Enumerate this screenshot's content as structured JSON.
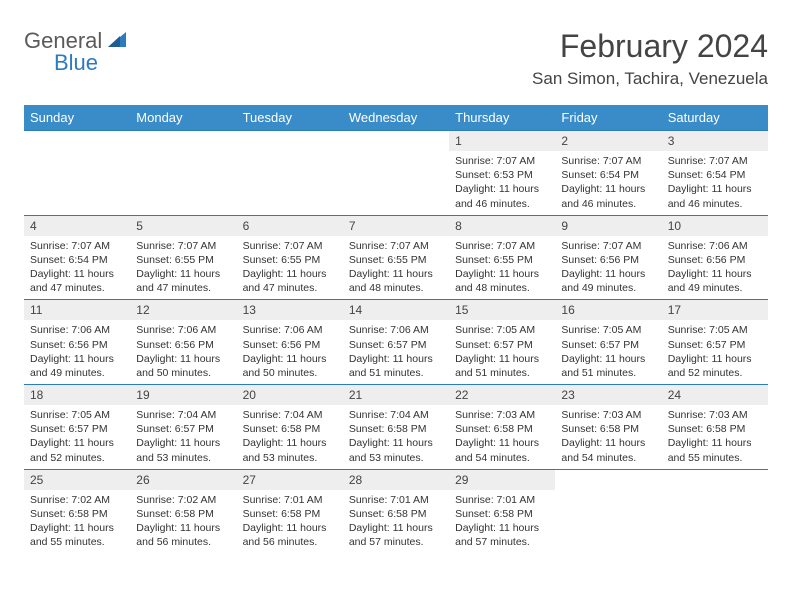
{
  "brand": {
    "word1": "General",
    "word2": "Blue"
  },
  "title": "February 2024",
  "location": "San Simon, Tachira, Venezuela",
  "colors": {
    "header_bg": "#3a8cc9",
    "header_text": "#ffffff",
    "cell_border": "#2b7bbf",
    "daynum_bg": "#eeeeee",
    "text": "#333333",
    "logo_gray": "#5a5a5a",
    "logo_blue": "#2b7bbf"
  },
  "day_headers": [
    "Sunday",
    "Monday",
    "Tuesday",
    "Wednesday",
    "Thursday",
    "Friday",
    "Saturday"
  ],
  "weeks": [
    [
      null,
      null,
      null,
      null,
      {
        "n": "1",
        "sunrise": "7:07 AM",
        "sunset": "6:53 PM",
        "daylight": "11 hours and 46 minutes."
      },
      {
        "n": "2",
        "sunrise": "7:07 AM",
        "sunset": "6:54 PM",
        "daylight": "11 hours and 46 minutes."
      },
      {
        "n": "3",
        "sunrise": "7:07 AM",
        "sunset": "6:54 PM",
        "daylight": "11 hours and 46 minutes."
      }
    ],
    [
      {
        "n": "4",
        "sunrise": "7:07 AM",
        "sunset": "6:54 PM",
        "daylight": "11 hours and 47 minutes."
      },
      {
        "n": "5",
        "sunrise": "7:07 AM",
        "sunset": "6:55 PM",
        "daylight": "11 hours and 47 minutes."
      },
      {
        "n": "6",
        "sunrise": "7:07 AM",
        "sunset": "6:55 PM",
        "daylight": "11 hours and 47 minutes."
      },
      {
        "n": "7",
        "sunrise": "7:07 AM",
        "sunset": "6:55 PM",
        "daylight": "11 hours and 48 minutes."
      },
      {
        "n": "8",
        "sunrise": "7:07 AM",
        "sunset": "6:55 PM",
        "daylight": "11 hours and 48 minutes."
      },
      {
        "n": "9",
        "sunrise": "7:07 AM",
        "sunset": "6:56 PM",
        "daylight": "11 hours and 49 minutes."
      },
      {
        "n": "10",
        "sunrise": "7:06 AM",
        "sunset": "6:56 PM",
        "daylight": "11 hours and 49 minutes."
      }
    ],
    [
      {
        "n": "11",
        "sunrise": "7:06 AM",
        "sunset": "6:56 PM",
        "daylight": "11 hours and 49 minutes."
      },
      {
        "n": "12",
        "sunrise": "7:06 AM",
        "sunset": "6:56 PM",
        "daylight": "11 hours and 50 minutes."
      },
      {
        "n": "13",
        "sunrise": "7:06 AM",
        "sunset": "6:56 PM",
        "daylight": "11 hours and 50 minutes."
      },
      {
        "n": "14",
        "sunrise": "7:06 AM",
        "sunset": "6:57 PM",
        "daylight": "11 hours and 51 minutes."
      },
      {
        "n": "15",
        "sunrise": "7:05 AM",
        "sunset": "6:57 PM",
        "daylight": "11 hours and 51 minutes."
      },
      {
        "n": "16",
        "sunrise": "7:05 AM",
        "sunset": "6:57 PM",
        "daylight": "11 hours and 51 minutes."
      },
      {
        "n": "17",
        "sunrise": "7:05 AM",
        "sunset": "6:57 PM",
        "daylight": "11 hours and 52 minutes."
      }
    ],
    [
      {
        "n": "18",
        "sunrise": "7:05 AM",
        "sunset": "6:57 PM",
        "daylight": "11 hours and 52 minutes."
      },
      {
        "n": "19",
        "sunrise": "7:04 AM",
        "sunset": "6:57 PM",
        "daylight": "11 hours and 53 minutes."
      },
      {
        "n": "20",
        "sunrise": "7:04 AM",
        "sunset": "6:58 PM",
        "daylight": "11 hours and 53 minutes."
      },
      {
        "n": "21",
        "sunrise": "7:04 AM",
        "sunset": "6:58 PM",
        "daylight": "11 hours and 53 minutes."
      },
      {
        "n": "22",
        "sunrise": "7:03 AM",
        "sunset": "6:58 PM",
        "daylight": "11 hours and 54 minutes."
      },
      {
        "n": "23",
        "sunrise": "7:03 AM",
        "sunset": "6:58 PM",
        "daylight": "11 hours and 54 minutes."
      },
      {
        "n": "24",
        "sunrise": "7:03 AM",
        "sunset": "6:58 PM",
        "daylight": "11 hours and 55 minutes."
      }
    ],
    [
      {
        "n": "25",
        "sunrise": "7:02 AM",
        "sunset": "6:58 PM",
        "daylight": "11 hours and 55 minutes."
      },
      {
        "n": "26",
        "sunrise": "7:02 AM",
        "sunset": "6:58 PM",
        "daylight": "11 hours and 56 minutes."
      },
      {
        "n": "27",
        "sunrise": "7:01 AM",
        "sunset": "6:58 PM",
        "daylight": "11 hours and 56 minutes."
      },
      {
        "n": "28",
        "sunrise": "7:01 AM",
        "sunset": "6:58 PM",
        "daylight": "11 hours and 57 minutes."
      },
      {
        "n": "29",
        "sunrise": "7:01 AM",
        "sunset": "6:58 PM",
        "daylight": "11 hours and 57 minutes."
      },
      null,
      null
    ]
  ],
  "labels": {
    "sunrise": "Sunrise: ",
    "sunset": "Sunset: ",
    "daylight": "Daylight: "
  }
}
